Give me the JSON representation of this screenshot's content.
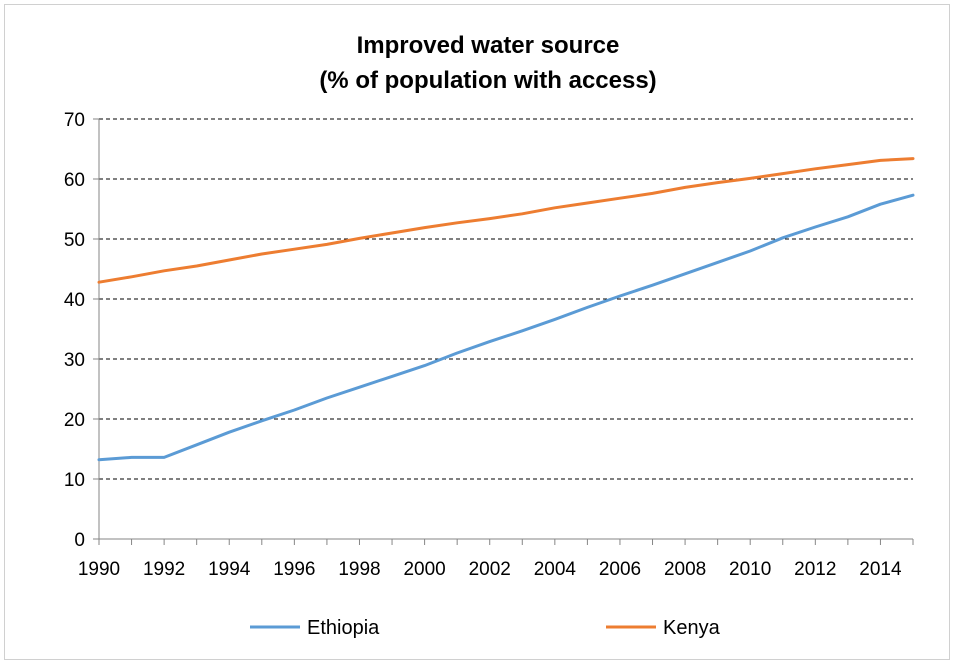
{
  "colors": {
    "Ethiopia": "#5b9bd5",
    "Kenya": "#ed7d31",
    "grid": "#000000",
    "axis": "#868686"
  },
  "chart_data": {
    "type": "line",
    "title": "Improved water source",
    "subtitle": "(% of population with access)",
    "xlabel": "",
    "ylabel": "",
    "x": [
      1990,
      1991,
      1992,
      1993,
      1994,
      1995,
      1996,
      1997,
      1998,
      1999,
      2000,
      2001,
      2002,
      2003,
      2004,
      2005,
      2006,
      2007,
      2008,
      2009,
      2010,
      2011,
      2012,
      2013,
      2014,
      2015
    ],
    "x_tick_labels": [
      "1990",
      "1992",
      "1994",
      "1996",
      "1998",
      "2000",
      "2002",
      "2004",
      "2006",
      "2008",
      "2010",
      "2012",
      "2014"
    ],
    "y_tick_labels": [
      "0",
      "10",
      "20",
      "30",
      "40",
      "50",
      "60",
      "70"
    ],
    "xlim": [
      1990,
      2015
    ],
    "ylim": [
      0,
      70
    ],
    "grid": "horizontal dashed",
    "legend_position": "bottom",
    "series": [
      {
        "name": "Ethiopia",
        "color": "#5b9bd5",
        "values": [
          13.2,
          13.6,
          13.6,
          15.7,
          17.8,
          19.7,
          21.5,
          23.5,
          25.3,
          27.1,
          28.9,
          31.0,
          32.9,
          34.7,
          36.6,
          38.6,
          40.5,
          42.3,
          44.2,
          46.1,
          48.0,
          50.2,
          52.0,
          53.7,
          55.8,
          57.3
        ]
      },
      {
        "name": "Kenya",
        "color": "#ed7d31",
        "values": [
          42.8,
          43.7,
          44.7,
          45.5,
          46.5,
          47.5,
          48.3,
          49.1,
          50.1,
          51.0,
          51.9,
          52.7,
          53.4,
          54.2,
          55.2,
          56.0,
          56.8,
          57.6,
          58.6,
          59.4,
          60.1,
          60.9,
          61.7,
          62.4,
          63.1,
          63.4
        ]
      }
    ]
  }
}
